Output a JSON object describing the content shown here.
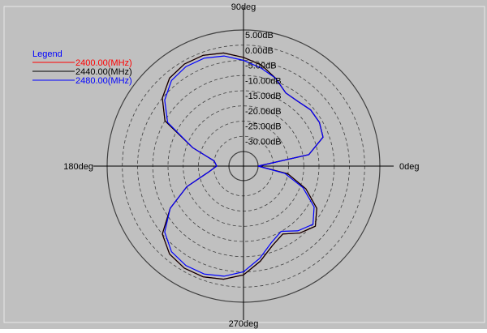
{
  "colors": {
    "panel_background": "#c0c0c0",
    "plot_background": "#c0c0c0",
    "axis": "#000000",
    "grid": "#404040",
    "legend_title": "#0000ff",
    "series": [
      "#ff0000",
      "#000000",
      "#0000ff"
    ]
  },
  "chart_data": {
    "type": "line",
    "subtype": "polar",
    "title": "",
    "angle_labels": [
      "90deg",
      "180deg",
      "0deg",
      "270deg"
    ],
    "radial_labels": [
      "5.00dB",
      "0.00dB",
      "-5.00dB",
      "-10.00dB",
      "-15.00dB",
      "-20.00dB",
      "-25.00dB",
      "-30.00dB"
    ],
    "radial_range_db": [
      -35,
      5
    ],
    "grid": true,
    "legend": {
      "title": "Legend",
      "position": "top-left",
      "entries": [
        "2400.00(MHz)",
        "2440.00(MHz)",
        "2480.00(MHz)"
      ]
    },
    "angles_deg": [
      0,
      10,
      20,
      30,
      40,
      50,
      60,
      70,
      80,
      90,
      100,
      110,
      120,
      130,
      140,
      150,
      160,
      170,
      180,
      190,
      200,
      210,
      220,
      230,
      240,
      250,
      260,
      270,
      280,
      290,
      300,
      310,
      320,
      330,
      340,
      350
    ],
    "series": [
      {
        "name": "2400.00(MHz)",
        "values_db": [
          -35,
          -18,
          -12,
          -11,
          -11,
          -12,
          -12,
          -9,
          -6,
          -4,
          -2,
          -1,
          -1,
          -2,
          -5,
          -10,
          -22,
          -30,
          -31,
          -28,
          -20,
          -12,
          -5,
          -2,
          -1,
          -1,
          -2,
          -4,
          -8,
          -12,
          -14,
          -11,
          -9,
          -12,
          -18,
          -25
        ]
      },
      {
        "name": "2440.00(MHz)",
        "values_db": [
          -35,
          -18,
          -12,
          -11,
          -11,
          -12,
          -12,
          -9,
          -6,
          -4,
          -2,
          -1,
          -1,
          -2,
          -5,
          -10,
          -22,
          -30,
          -31,
          -28,
          -20,
          -12,
          -5,
          -2,
          -1,
          -1,
          -2,
          -4,
          -8,
          -12,
          -14,
          -11,
          -9,
          -12,
          -18,
          -25
        ]
      },
      {
        "name": "2480.00(MHz)",
        "values_db": [
          -35,
          -18,
          -12,
          -11,
          -11,
          -12,
          -12,
          -9,
          -7,
          -5,
          -3,
          -2,
          -2,
          -3,
          -6,
          -11,
          -22,
          -30,
          -31,
          -28,
          -20,
          -12,
          -6,
          -3,
          -2,
          -2,
          -3,
          -5,
          -9,
          -13,
          -15,
          -12,
          -10,
          -13,
          -19,
          -26
        ]
      }
    ]
  }
}
